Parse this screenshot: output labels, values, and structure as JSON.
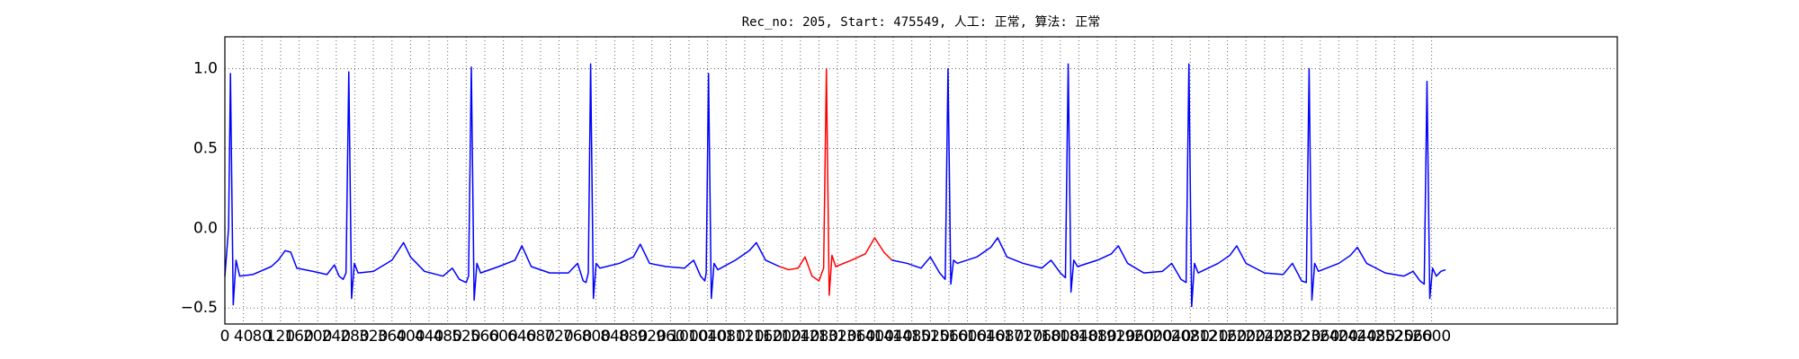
{
  "chart_data": {
    "type": "line",
    "title": "Rec_no: 205, Start: 475549, 人工: 正常, 算法: 正常",
    "xlim": [
      0,
      3000
    ],
    "ylim": [
      -0.6,
      1.2
    ],
    "grid": true,
    "xticks": [
      0,
      40,
      80,
      120,
      160,
      200,
      240,
      280,
      320,
      360,
      400,
      440,
      480,
      520,
      560,
      600,
      640,
      680,
      720,
      760,
      800,
      840,
      880,
      920,
      960,
      1000,
      1040,
      1080,
      1120,
      1160,
      1200,
      1240,
      1280,
      1320,
      1360,
      1400,
      1440,
      1480,
      1520,
      1560,
      1600,
      1640,
      1680,
      1720,
      1760,
      1800,
      1840,
      1880,
      1920,
      1960,
      2000,
      2040,
      2080,
      2120,
      2160,
      2200,
      2240,
      2280,
      2320,
      2360,
      2400,
      2440,
      2480,
      2520,
      2560,
      2600
    ],
    "yticks": [
      {
        "value": -0.5,
        "label": "−0.5"
      },
      {
        "value": 0,
        "label": "0.0"
      },
      0.5,
      {
        "value": 1,
        "label": "1.0"
      }
    ],
    "series": [
      {
        "color": "#0000ff",
        "x": [
          0,
          8,
          12,
          18,
          24,
          32,
          60,
          100,
          115,
          130,
          142,
          155,
          190,
          220,
          236,
          246,
          255,
          261,
          267,
          273,
          279,
          287,
          320,
          360,
          385,
          400,
          430,
          470,
          490,
          505,
          520,
          525,
          531,
          537,
          543,
          551,
          590,
          625,
          640,
          660,
          700,
          740,
          760,
          772,
          778,
          783,
          788,
          794,
          800,
          808,
          850,
          880,
          895,
          915,
          950,
          990,
          1010,
          1025,
          1034,
          1037,
          1042,
          1048,
          1054,
          1062,
          1100,
          1130,
          1145,
          1165,
          1195,
          1300,
          1437,
          1470,
          1500,
          1520,
          1540,
          1552,
          1558,
          1564,
          1570,
          1578,
          1620,
          1650,
          1665,
          1685,
          1720,
          1760,
          1780,
          1800,
          1811,
          1817,
          1823,
          1829,
          1837,
          1880,
          1910,
          1925,
          1945,
          1980,
          2020,
          2040,
          2060,
          2071,
          2077,
          2083,
          2089,
          2097,
          2140,
          2165,
          2180,
          2200,
          2240,
          2280,
          2300,
          2320,
          2330,
          2336,
          2342,
          2348,
          2356,
          2400,
          2425,
          2440,
          2460,
          2500,
          2540,
          2560,
          2575,
          2584,
          2590,
          2596,
          2602,
          2610,
          2620,
          2630
        ],
        "values": [
          -0.3,
          0.0,
          0.97,
          -0.48,
          -0.2,
          -0.3,
          -0.29,
          -0.24,
          -0.2,
          -0.14,
          -0.15,
          -0.25,
          -0.27,
          -0.29,
          -0.23,
          -0.3,
          -0.32,
          -0.28,
          0.98,
          -0.44,
          -0.22,
          -0.28,
          -0.27,
          -0.2,
          -0.09,
          -0.18,
          -0.27,
          -0.3,
          -0.25,
          -0.32,
          -0.34,
          -0.3,
          1.01,
          -0.45,
          -0.22,
          -0.28,
          -0.24,
          -0.2,
          -0.11,
          -0.24,
          -0.28,
          -0.28,
          -0.22,
          -0.33,
          -0.34,
          -0.28,
          1.03,
          -0.44,
          -0.22,
          -0.25,
          -0.22,
          -0.18,
          -0.1,
          -0.22,
          -0.24,
          -0.25,
          -0.2,
          -0.3,
          -0.33,
          -0.28,
          0.97,
          -0.44,
          -0.22,
          -0.26,
          -0.2,
          -0.14,
          -0.09,
          -0.2,
          -0.24,
          null,
          -0.2,
          -0.22,
          -0.25,
          -0.18,
          -0.28,
          -0.32,
          1.0,
          -0.35,
          -0.2,
          -0.22,
          -0.18,
          -0.12,
          -0.06,
          -0.18,
          -0.22,
          -0.25,
          -0.2,
          -0.28,
          -0.31,
          1.03,
          -0.4,
          -0.2,
          -0.24,
          -0.2,
          -0.16,
          -0.11,
          -0.22,
          -0.28,
          -0.27,
          -0.22,
          -0.32,
          -0.34,
          1.03,
          -0.49,
          -0.22,
          -0.28,
          -0.22,
          -0.17,
          -0.11,
          -0.22,
          -0.28,
          -0.29,
          -0.22,
          -0.33,
          -0.34,
          1.0,
          -0.45,
          -0.22,
          -0.27,
          -0.22,
          -0.17,
          -0.12,
          -0.22,
          -0.28,
          -0.3,
          -0.27,
          -0.33,
          -0.35,
          0.92,
          -0.44,
          -0.25,
          -0.3,
          -0.27,
          -0.26
        ]
      },
      {
        "color": "#ff0000",
        "x": [
          1195,
          1215,
          1235,
          1250,
          1265,
          1280,
          1290,
          1296,
          1302,
          1308,
          1316,
          1350,
          1380,
          1400,
          1420,
          1437
        ],
        "values": [
          -0.24,
          -0.26,
          -0.25,
          -0.18,
          -0.3,
          -0.33,
          -0.25,
          1.0,
          -0.42,
          -0.17,
          -0.24,
          -0.2,
          -0.16,
          -0.06,
          -0.15,
          -0.2
        ]
      }
    ]
  }
}
